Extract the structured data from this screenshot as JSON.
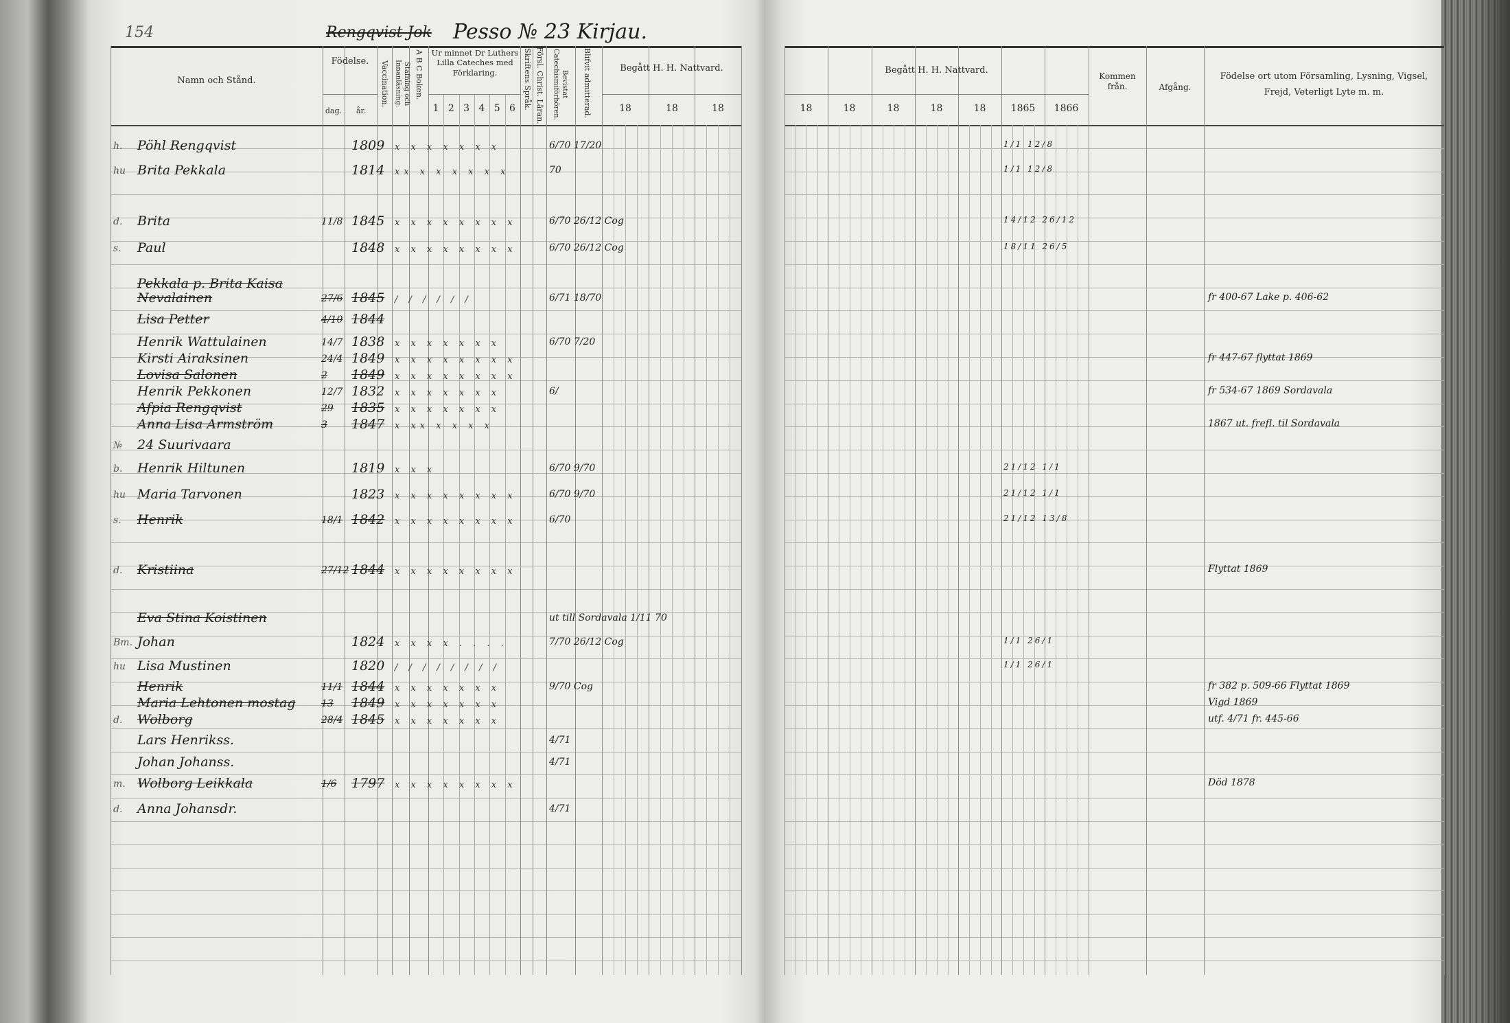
{
  "left_page": {
    "page_number": "154",
    "title_struck": "Rengqvist Jok",
    "title": "Pesso № 23 Kirjau.",
    "headers": {
      "name": "Namn och Stånd.",
      "birth": "Födelse.",
      "birth_day": "dag.",
      "birth_year": "år.",
      "vaccination": "Vaccination.",
      "spelling": "Stafning och Innanläsning.",
      "abc": "A B C Boken.",
      "catechism": "Ur minnet Dr Luthers Lilla Cateches med Förklaring.",
      "catechism_cols": [
        "1",
        "2",
        "3",
        "4",
        "5",
        "6"
      ],
      "scripture": "Skriftens Språk.",
      "christian_teaching": "Försl. Christ. Läran.",
      "catechism_hearings": "Bevistat Catechismiförhören.",
      "admitted": "Blifvit admitterad.",
      "communion": "Begått H. H. Nattvard.",
      "communion_years": [
        "18",
        "18",
        "18"
      ]
    },
    "rows": [
      {
        "prefix": "h.",
        "name": "Pöhl Rengqvist",
        "day": "",
        "year": "1809",
        "marks": "x x x x x x x",
        "notes": "6/70 17/20",
        "struck": false
      },
      {
        "prefix": "hu",
        "name": "Brita Pekkala",
        "day": "",
        "year": "1814",
        "marks": "xx x x x x x x",
        "notes": "70",
        "struck": false
      },
      {
        "prefix": "d.",
        "name": "Brita",
        "day": "11/8",
        "year": "1845",
        "marks": "x x x x x x x x",
        "notes": "6/70 26/12 Cog",
        "struck": false
      },
      {
        "prefix": "s.",
        "name": "Paul",
        "day": "",
        "year": "1848",
        "marks": "x x x x x x x x",
        "notes": "6/70 26/12 Cog",
        "struck": false
      },
      {
        "prefix": "",
        "name": "Pekkala p. Brita Kaisa Nevalainen",
        "day": "27/6",
        "year": "1845",
        "marks": "/ / / / / /",
        "notes": "6/71 18/70",
        "struck": true
      },
      {
        "prefix": "",
        "name": "Lisa Petter",
        "day": "4/10",
        "year": "1844",
        "marks": "",
        "notes": "",
        "struck": true
      },
      {
        "prefix": "",
        "name": "Henrik Wattulainen",
        "day": "14/7",
        "year": "1838",
        "marks": "x x x x x x x",
        "notes": "6/70 7/20",
        "struck": false
      },
      {
        "prefix": "",
        "name": "Kirsti Airaksinen",
        "day": "24/4",
        "year": "1849",
        "marks": "x x x x x x x x",
        "notes": "",
        "struck": false
      },
      {
        "prefix": "",
        "name": "Lovisa Salonen",
        "day": "2",
        "year": "1849",
        "marks": "x x x x x x x x",
        "notes": "",
        "struck": true
      },
      {
        "prefix": "",
        "name": "Henrik Pekkonen",
        "day": "12/7",
        "year": "1832",
        "marks": "x x x x x x x",
        "notes": "6/",
        "struck": false
      },
      {
        "prefix": "",
        "name": "Afpia Rengqvist",
        "day": "29",
        "year": "1835",
        "marks": "x x x x x x x",
        "notes": "",
        "struck": true
      },
      {
        "prefix": "",
        "name": "Anna Lisa Armström",
        "day": "3",
        "year": "1847",
        "marks": "x xx x x x x",
        "notes": "",
        "struck": true
      },
      {
        "prefix": "№",
        "name": "24 Suurivaara",
        "day": "",
        "year": "",
        "marks": "",
        "notes": "",
        "struck": false
      },
      {
        "prefix": "b.",
        "name": "Henrik Hiltunen",
        "day": "",
        "year": "1819",
        "marks": "x x x",
        "notes": "6/70 9/70",
        "struck": false
      },
      {
        "prefix": "hu",
        "name": "Maria Tarvonen",
        "day": "",
        "year": "1823",
        "marks": "x x x x x x x x",
        "notes": "6/70 9/70",
        "struck": false
      },
      {
        "prefix": "s.",
        "name": "Henrik",
        "day": "18/1",
        "year": "1842",
        "marks": "x x x x x x x x",
        "notes": "6/70",
        "struck": true
      },
      {
        "prefix": "d.",
        "name": "Kristiina",
        "day": "27/12",
        "year": "1844",
        "marks": "x x x x x x x x",
        "notes": "",
        "struck": true
      },
      {
        "prefix": "",
        "name": "Eva Stina Koistinen",
        "day": "",
        "year": "",
        "marks": "",
        "notes": "ut till Sordavala 1/11 70",
        "struck": true
      },
      {
        "prefix": "Bm.",
        "name": "Johan",
        "day": "",
        "year": "1824",
        "marks": "x x x x . . . .",
        "notes": "7/70 26/12 Cog",
        "struck": false
      },
      {
        "prefix": "hu",
        "name": "Lisa Mustinen",
        "day": "",
        "year": "1820",
        "marks": "/ / / / / / / /",
        "notes": "",
        "struck": false
      },
      {
        "prefix": "",
        "name": "Henrik",
        "day": "11/1",
        "year": "1844",
        "marks": "x x x x x x x",
        "notes": "9/70 Cog",
        "struck": true
      },
      {
        "prefix": "",
        "name": "Maria Lehtonen mostag",
        "day": "13",
        "year": "1849",
        "marks": "x x x x x x x",
        "notes": "",
        "struck": true
      },
      {
        "prefix": "d.",
        "name": "Wolborg",
        "day": "28/4",
        "year": "1845",
        "marks": "x x x x x x x",
        "notes": "",
        "struck": true
      },
      {
        "prefix": "",
        "name": "Lars Henrikss.",
        "day": "",
        "year": "",
        "marks": "",
        "notes": "4/71",
        "struck": false
      },
      {
        "prefix": "",
        "name": "Johan Johanss.",
        "day": "",
        "year": "",
        "marks": "",
        "notes": "4/71",
        "struck": false
      },
      {
        "prefix": "m.",
        "name": "Wolborg Leikkala",
        "day": "1/6",
        "year": "1797",
        "marks": "x x x x x x x x",
        "notes": "",
        "struck": true
      },
      {
        "prefix": "d.",
        "name": "Anna Johansdr.",
        "day": "",
        "year": "",
        "marks": "",
        "notes": "4/71",
        "struck": false
      }
    ]
  },
  "right_page": {
    "headers": {
      "communion": "Begått H. H. Nattvard.",
      "communion_years": [
        "18",
        "18",
        "18",
        "18",
        "18",
        "1865",
        "1866"
      ],
      "arrived_from": "Kommen från.",
      "departure": "Afgång.",
      "remarks": "Födelse ort utom Församling, Lysning, Vigsel, Frejd, Veterligt Lyte m. m."
    },
    "remarks": [
      {
        "text": "fr 400-67 Lake p. 406-62",
        "row": 4
      },
      {
        "text": "fr 447-67 flyttat 1869",
        "row": 7
      },
      {
        "text": "fr 534-67 1869 Sordavala",
        "row": 9
      },
      {
        "text": "1867 ut. frefl. til Sordavala",
        "row": 11
      },
      {
        "text": "Flyttat 1869",
        "row": 16
      },
      {
        "text": "fr 382 p. 509-66 Flyttat 1869",
        "row": 20
      },
      {
        "text": "Vigd 1869",
        "row": 21
      },
      {
        "text": "utf. 4/71 fr. 445-66",
        "row": 22
      },
      {
        "text": "Död 1878",
        "row": 25
      }
    ],
    "entries_1865_1866": [
      {
        "row": 0,
        "text": "1/1 12/8"
      },
      {
        "row": 1,
        "text": "1/1 12/8"
      },
      {
        "row": 2,
        "text": "14/12 26/12"
      },
      {
        "row": 3,
        "text": "18/11 26/5"
      },
      {
        "row": 13,
        "text": "21/12 1/1"
      },
      {
        "row": 14,
        "text": "21/12 1/1"
      },
      {
        "row": 15,
        "text": "21/12 13/8"
      },
      {
        "row": 18,
        "text": "1/1 26/1"
      },
      {
        "row": 19,
        "text": "1/1 26/1"
      }
    ]
  }
}
